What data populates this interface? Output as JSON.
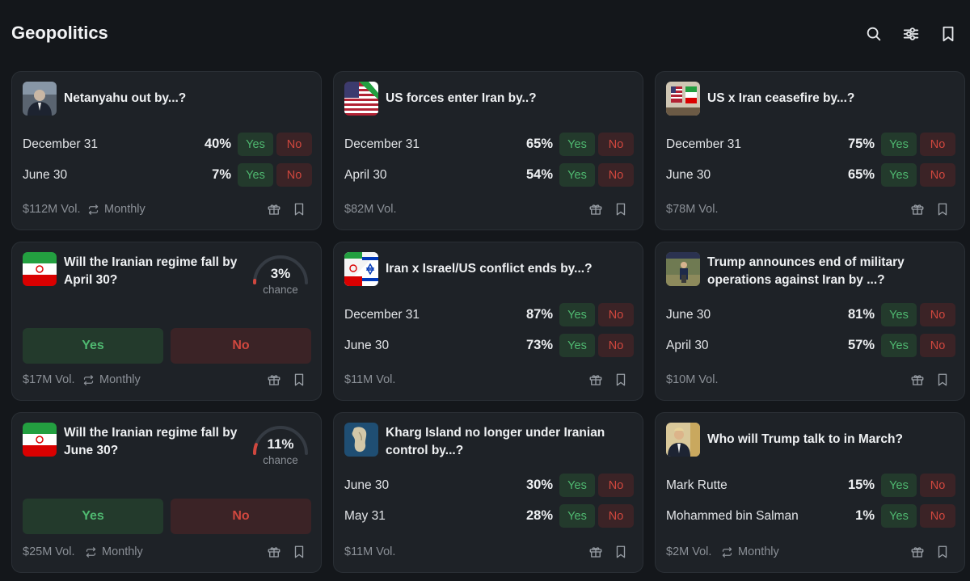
{
  "header": {
    "title": "Geopolitics",
    "icons": [
      "search-icon",
      "filter-sliders-icon",
      "bookmark-icon"
    ]
  },
  "colors": {
    "background": "#14171b",
    "card": "#1e2227",
    "yes_text": "#4fb870",
    "yes_bg": "#233a2c",
    "no_text": "#d0473e",
    "no_bg": "#3b2326"
  },
  "cards": [
    {
      "title": "Netanyahu out by...?",
      "image": "netanyahu-photo",
      "outcomes": [
        {
          "label": "December 31",
          "pct": "40%",
          "yes": "Yes",
          "no": "No"
        },
        {
          "label": "June 30",
          "pct": "7%",
          "yes": "Yes",
          "no": "No"
        }
      ],
      "volume": "$112M Vol.",
      "recurrence": "Monthly"
    },
    {
      "title": "US forces enter Iran by..?",
      "image": "us-iran-flags",
      "outcomes": [
        {
          "label": "December 31",
          "pct": "65%",
          "yes": "Yes",
          "no": "No"
        },
        {
          "label": "April 30",
          "pct": "54%",
          "yes": "Yes",
          "no": "No"
        }
      ],
      "volume": "$82M Vol."
    },
    {
      "title": "US x Iran ceasefire by...?",
      "image": "us-iran-flags-photo",
      "outcomes": [
        {
          "label": "December 31",
          "pct": "75%",
          "yes": "Yes",
          "no": "No"
        },
        {
          "label": "June 30",
          "pct": "65%",
          "yes": "Yes",
          "no": "No"
        }
      ],
      "volume": "$78M Vol."
    },
    {
      "title": "Will the Iranian regime fall by April 30?",
      "image": "iran-flag",
      "chance": 0.03,
      "chance_pct": "3%",
      "chance_label": "chance",
      "yes": "Yes",
      "no": "No",
      "volume": "$17M Vol.",
      "recurrence": "Monthly"
    },
    {
      "title": "Iran x Israel/US conflict ends by...?",
      "image": "iran-israel-flags",
      "outcomes": [
        {
          "label": "December 31",
          "pct": "87%",
          "yes": "Yes",
          "no": "No"
        },
        {
          "label": "June 30",
          "pct": "73%",
          "yes": "Yes",
          "no": "No"
        }
      ],
      "volume": "$11M Vol."
    },
    {
      "title": "Trump announces end of military operations against Iran by ...?",
      "image": "trump-podium-photo",
      "outcomes": [
        {
          "label": "June 30",
          "pct": "81%",
          "yes": "Yes",
          "no": "No"
        },
        {
          "label": "April 30",
          "pct": "57%",
          "yes": "Yes",
          "no": "No"
        }
      ],
      "volume": "$10M Vol."
    },
    {
      "title": "Will the Iranian regime fall by June 30?",
      "image": "iran-flag",
      "chance": 0.11,
      "chance_pct": "11%",
      "chance_label": "chance",
      "yes": "Yes",
      "no": "No",
      "volume": "$25M Vol.",
      "recurrence": "Monthly"
    },
    {
      "title": "Kharg Island no longer under Iranian control by...?",
      "image": "kharg-island-satellite",
      "outcomes": [
        {
          "label": "June 30",
          "pct": "30%",
          "yes": "Yes",
          "no": "No"
        },
        {
          "label": "May 31",
          "pct": "28%",
          "yes": "Yes",
          "no": "No"
        }
      ],
      "volume": "$11M Vol."
    },
    {
      "title": "Who will Trump talk to in March?",
      "image": "trump-phone-photo",
      "outcomes": [
        {
          "label": "Mark Rutte",
          "pct": "15%",
          "yes": "Yes",
          "no": "No"
        },
        {
          "label": "Mohammed bin Salman",
          "pct": "1%",
          "yes": "Yes",
          "no": "No"
        }
      ],
      "volume": "$2M Vol.",
      "recurrence": "Monthly"
    }
  ]
}
